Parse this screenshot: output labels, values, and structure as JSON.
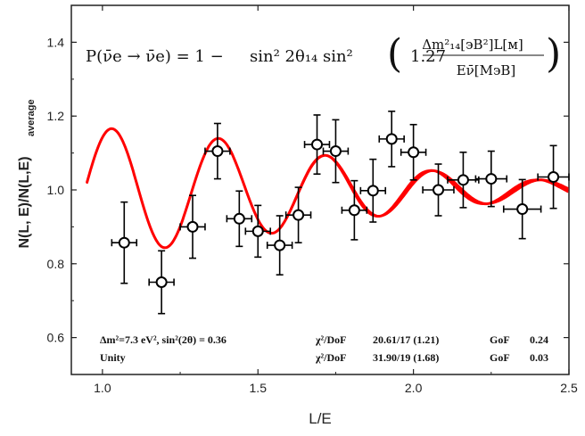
{
  "chart_data": {
    "type": "line",
    "xlabel": "L/E",
    "ylabel": {
      "main": "N(L, E)/N(L,E)",
      "subscript": "average"
    },
    "xlim": [
      0.9,
      2.5
    ],
    "ylim": [
      0.5,
      1.5
    ],
    "xticks": [
      "1.0",
      "1.5",
      "2.0",
      "2.5"
    ],
    "yticks": [
      "0.6",
      "0.8",
      "1.0",
      "1.2",
      "1.4"
    ],
    "formula": {
      "lhs": "P(ν̄e → ν̄e) = 1 −",
      "sin_part": "sin² 2θ₁₄ sin²",
      "coef": "1.27",
      "numerator": "Δm²₁₄[эВ²]L[м]",
      "denominator": "Eν̄[МэВ]"
    },
    "annotations": {
      "fit_params": "Δm²=7.3 eV², sin²(2θ) = 0.36",
      "fit_chi_label": "χ²/DoF",
      "fit_chi_value": "20.61/17 (1.21)",
      "fit_gof_label": "GoF",
      "fit_gof_value": "0.24",
      "unity_label": "Unity",
      "unity_chi_label": "χ²/DoF",
      "unity_chi_value": "31.90/19 (1.68)",
      "unity_gof_label": "GoF",
      "unity_gof_value": "0.03"
    },
    "series": [
      {
        "type": "errorbar",
        "color": "#000000",
        "points": [
          {
            "x": 1.07,
            "y": 0.857,
            "xerr": 0.04,
            "yerr": 0.11
          },
          {
            "x": 1.19,
            "y": 0.75,
            "xerr": 0.04,
            "yerr": 0.085
          },
          {
            "x": 1.29,
            "y": 0.9,
            "xerr": 0.04,
            "yerr": 0.085
          },
          {
            "x": 1.37,
            "y": 1.105,
            "xerr": 0.04,
            "yerr": 0.075
          },
          {
            "x": 1.44,
            "y": 0.922,
            "xerr": 0.04,
            "yerr": 0.075
          },
          {
            "x": 1.5,
            "y": 0.888,
            "xerr": 0.04,
            "yerr": 0.07
          },
          {
            "x": 1.57,
            "y": 0.85,
            "xerr": 0.04,
            "yerr": 0.08
          },
          {
            "x": 1.63,
            "y": 0.932,
            "xerr": 0.04,
            "yerr": 0.075
          },
          {
            "x": 1.69,
            "y": 1.123,
            "xerr": 0.04,
            "yerr": 0.08
          },
          {
            "x": 1.75,
            "y": 1.105,
            "xerr": 0.04,
            "yerr": 0.085
          },
          {
            "x": 1.81,
            "y": 0.945,
            "xerr": 0.04,
            "yerr": 0.08
          },
          {
            "x": 1.87,
            "y": 0.998,
            "xerr": 0.04,
            "yerr": 0.085
          },
          {
            "x": 1.93,
            "y": 1.138,
            "xerr": 0.04,
            "yerr": 0.075
          },
          {
            "x": 2.0,
            "y": 1.102,
            "xerr": 0.04,
            "yerr": 0.075
          },
          {
            "x": 2.08,
            "y": 1.0,
            "xerr": 0.05,
            "yerr": 0.07
          },
          {
            "x": 2.16,
            "y": 1.027,
            "xerr": 0.05,
            "yerr": 0.075
          },
          {
            "x": 2.25,
            "y": 1.03,
            "xerr": 0.05,
            "yerr": 0.075
          },
          {
            "x": 2.35,
            "y": 0.948,
            "xerr": 0.06,
            "yerr": 0.08
          },
          {
            "x": 2.45,
            "y": 1.035,
            "xerr": 0.05,
            "yerr": 0.085
          }
        ]
      },
      {
        "type": "line",
        "color": "#ff0000",
        "description_model": "oscillation fit",
        "params": {
          "dm2": 7.3,
          "sin2_2theta": 0.36
        }
      }
    ]
  }
}
